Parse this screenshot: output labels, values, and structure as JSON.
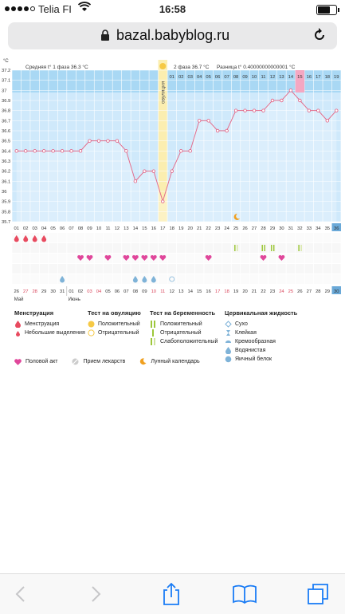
{
  "status_bar": {
    "carrier": "Telia FI",
    "time": "16:58"
  },
  "browser": {
    "url": "bazal.babyblog.ru"
  },
  "chart_data": {
    "type": "line",
    "title": "",
    "ylabel": "°C",
    "ylim": [
      35.7,
      37.2
    ],
    "y_ticks": [
      "37.2",
      "37.1",
      "37",
      "36.9",
      "36.8",
      "36.7",
      "36.6",
      "36.5",
      "36.4",
      "36.3",
      "36.2",
      "36.1",
      "36",
      "35.9",
      "35.8",
      "35.7"
    ],
    "phase1_label": "Средняя t° 1 фаза 36.3 °C",
    "phase2_label": "2 фаза 36.7 °C",
    "diff_label": "Разница t° 0.40000000000001 °C",
    "ovulation_label": "овуляция",
    "top_days": [
      "01",
      "02",
      "03",
      "04",
      "05",
      "06",
      "07",
      "08",
      "09",
      "10",
      "11",
      "12",
      "13",
      "14",
      "15",
      "16",
      "17",
      "18",
      "19"
    ],
    "cycle_days": [
      "01",
      "02",
      "03",
      "04",
      "05",
      "06",
      "07",
      "08",
      "09",
      "10",
      "11",
      "12",
      "13",
      "14",
      "15",
      "16",
      "17",
      "18",
      "19",
      "20",
      "21",
      "22",
      "23",
      "24",
      "25",
      "26",
      "27",
      "28",
      "29",
      "30",
      "31",
      "32",
      "33",
      "34",
      "35",
      "36"
    ],
    "temps": [
      36.4,
      36.4,
      36.4,
      36.4,
      36.4,
      36.4,
      36.4,
      36.4,
      36.5,
      36.5,
      36.5,
      36.5,
      36.4,
      36.1,
      36.2,
      36.2,
      35.9,
      36.2,
      36.4,
      36.4,
      36.7,
      36.7,
      36.6,
      36.6,
      36.8,
      36.8,
      36.8,
      36.8,
      36.9,
      36.9,
      37.0,
      36.9,
      36.8,
      36.8,
      36.7,
      36.8
    ],
    "dates": [
      "26",
      "27",
      "28",
      "29",
      "30",
      "31",
      "01",
      "02",
      "03",
      "04",
      "05",
      "06",
      "07",
      "08",
      "09",
      "10",
      "11",
      "12",
      "13",
      "14",
      "15",
      "16",
      "17",
      "18",
      "19",
      "20",
      "21",
      "22",
      "23",
      "24",
      "25",
      "26",
      "27",
      "28",
      "29",
      "30"
    ],
    "weekend_dates": [
      1,
      2,
      8,
      9,
      15,
      16,
      22,
      23,
      29,
      30
    ],
    "month_may": "Май",
    "month_june": "Июнь"
  },
  "legend": {
    "mens_title": "Менструация",
    "mens": "Менструация",
    "spotting": "Небольшие выделения",
    "ovtest_title": "Тест на овуляцию",
    "ov_pos": "Положительный",
    "ov_neg": "Отрицательный",
    "preg_title": "Тест на беременность",
    "preg_pos": "Положительный",
    "preg_neg": "Отрицательный",
    "preg_weak": "Слабоположительный",
    "cerv_title": "Цервикальная жидкость",
    "dry": "Сухо",
    "sticky": "Клейкая",
    "creamy": "Кремообразная",
    "watery": "Водянистая",
    "eggwhite": "Яичный белок",
    "sex": "Половой акт",
    "meds": "Прием лекарств",
    "lunar": "Лунный календарь"
  },
  "colors": {
    "plot_bg": "#cfe9fb",
    "header_bg": "#a9d8f4",
    "line": "#e05a7d",
    "ovulation": "#fbeeb0",
    "heart": "#e0479b",
    "drop": "#e84a5f",
    "test": "#9dc73a"
  }
}
